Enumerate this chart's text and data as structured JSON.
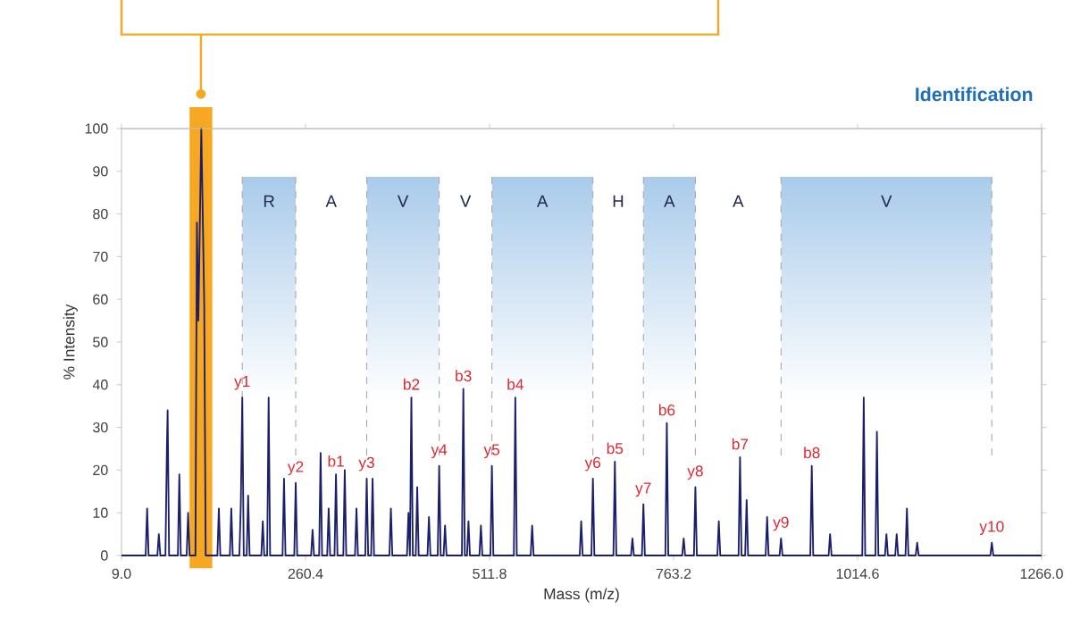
{
  "chart_data": {
    "type": "line",
    "title": "Identification",
    "xlabel": "Mass (m/z)",
    "ylabel": "% Intensity",
    "color": "#1b1f6b",
    "x": [
      9,
      42,
      44,
      46,
      58,
      60,
      62,
      69,
      71,
      72,
      74,
      86,
      88,
      90,
      98,
      100,
      102,
      110,
      112,
      114,
      118,
      122,
      124,
      140,
      142,
      144,
      157,
      159,
      161,
      170,
      172,
      174,
      176,
      180,
      182,
      184,
      200,
      202,
      204,
      208,
      210,
      212,
      229,
      231,
      233,
      245,
      247,
      249,
      268,
      270,
      272,
      279,
      281,
      283,
      290,
      292,
      294,
      300,
      302,
      304,
      312,
      314,
      316,
      328,
      330,
      332,
      342,
      344,
      346,
      350,
      352,
      354,
      375,
      377,
      379,
      399,
      401,
      403,
      405,
      407,
      411,
      413,
      415,
      427,
      429,
      431,
      441,
      443,
      445,
      449,
      451,
      453,
      474,
      476,
      478,
      481,
      483,
      485,
      498,
      500,
      502,
      513,
      515,
      517,
      545,
      547,
      549,
      568,
      570,
      572,
      635,
      637,
      639,
      651,
      653,
      655,
      681,
      683,
      685,
      705,
      707,
      709,
      720,
      722,
      724,
      752,
      754,
      756,
      775,
      777,
      779,
      791,
      793,
      795,
      823,
      825,
      827,
      852,
      854,
      856,
      861,
      863,
      865,
      889,
      891,
      893,
      908,
      910,
      912,
      950,
      952,
      954,
      975,
      977,
      979,
      1021,
      1023,
      1025,
      1039,
      1041,
      1043,
      1052,
      1054,
      1056,
      1066,
      1068,
      1070,
      1080,
      1082,
      1084,
      1094,
      1096,
      1098,
      1196,
      1198,
      1200,
      1266
    ],
    "values": [
      0,
      0,
      11,
      0,
      0,
      5,
      0,
      0,
      25,
      34,
      0,
      0,
      19,
      0,
      0,
      10,
      0,
      0,
      78,
      55,
      100,
      59,
      0,
      0,
      11,
      0,
      0,
      11,
      0,
      0,
      12,
      37,
      0,
      0,
      14,
      0,
      0,
      8,
      0,
      0,
      37,
      0,
      0,
      18,
      0,
      0,
      17,
      0,
      0,
      6,
      0,
      0,
      24,
      0,
      0,
      11,
      0,
      0,
      19,
      0,
      0,
      20,
      0,
      0,
      11,
      0,
      0,
      18,
      0,
      0,
      18,
      0,
      0,
      11,
      0,
      0,
      10,
      0,
      37,
      0,
      0,
      16,
      0,
      0,
      9,
      0,
      0,
      21,
      0,
      0,
      7,
      0,
      0,
      39,
      0,
      0,
      8,
      0,
      0,
      7,
      0,
      0,
      21,
      0,
      0,
      37,
      0,
      0,
      7,
      0,
      0,
      8,
      0,
      0,
      18,
      0,
      0,
      22,
      0,
      0,
      4,
      0,
      0,
      12,
      0,
      0,
      31,
      0,
      0,
      4,
      0,
      0,
      16,
      0,
      0,
      8,
      0,
      0,
      23,
      0,
      0,
      13,
      0,
      0,
      9,
      0,
      0,
      4,
      0,
      0,
      21,
      0,
      0,
      5,
      0,
      0,
      37,
      0,
      0,
      29,
      0,
      0,
      5,
      0,
      0,
      5,
      0,
      0,
      11,
      0,
      0,
      3,
      0,
      0,
      3,
      0,
      0
    ],
    "xlim": [
      9.0,
      1266.0
    ],
    "ylim": [
      0,
      100
    ],
    "xticks": [
      {
        "value": 9.0,
        "label": "9.0"
      },
      {
        "value": 260.4,
        "label": "260.4"
      },
      {
        "value": 511.8,
        "label": "511.8"
      },
      {
        "value": 763.2,
        "label": "763.2"
      },
      {
        "value": 1014.6,
        "label": "1014.6"
      },
      {
        "value": 1266.0,
        "label": "1266.0"
      }
    ],
    "yticks": [
      0,
      10,
      20,
      30,
      40,
      50,
      60,
      70,
      80,
      90,
      100
    ],
    "bands": [
      {
        "axis": "x",
        "from": 102,
        "to": 133,
        "color": "#f7a823"
      },
      {
        "axis": "x",
        "from": 174,
        "to": 247,
        "label": "R",
        "color": "#a9cbea"
      },
      {
        "axis": "x",
        "from": 344,
        "to": 443,
        "label": "V",
        "color": "#a9cbea"
      },
      {
        "axis": "x",
        "from": 515,
        "to": 653,
        "label": "A",
        "color": "#a9cbea"
      },
      {
        "axis": "x",
        "from": 722,
        "to": 793,
        "label": "A",
        "color": "#a9cbea"
      },
      {
        "axis": "x",
        "from": 910,
        "to": 1198,
        "label": "V",
        "color": "#a9cbea"
      }
    ],
    "ref_lines": [
      {
        "axis": "x",
        "value": 174,
        "color": "#a6a6a6",
        "line_style": "dashed"
      },
      {
        "axis": "x",
        "value": 247,
        "color": "#a6a6a6",
        "line_style": "dashed"
      },
      {
        "axis": "x",
        "value": 344,
        "color": "#a6a6a6",
        "line_style": "dashed"
      },
      {
        "axis": "x",
        "value": 443,
        "color": "#a6a6a6",
        "line_style": "dashed"
      },
      {
        "axis": "x",
        "value": 515,
        "color": "#a6a6a6",
        "line_style": "dashed"
      },
      {
        "axis": "x",
        "value": 653,
        "color": "#a6a6a6",
        "line_style": "dashed"
      },
      {
        "axis": "x",
        "value": 722,
        "color": "#a6a6a6",
        "line_style": "dashed"
      },
      {
        "axis": "x",
        "value": 793,
        "color": "#a6a6a6",
        "line_style": "dashed"
      },
      {
        "axis": "x",
        "value": 910,
        "color": "#a6a6a6",
        "line_style": "dashed"
      },
      {
        "axis": "x",
        "value": 1198,
        "color": "#a6a6a6",
        "line_style": "dashed"
      }
    ],
    "annotations": [
      "A",
      "V",
      "H",
      "A",
      {
        "text": "y1",
        "x": 174,
        "y": 37
      },
      {
        "text": "y2",
        "x": 247,
        "y": 17
      },
      {
        "text": "b1",
        "x": 302,
        "y": 19
      },
      {
        "text": "y3",
        "x": 344,
        "y": 18
      },
      {
        "text": "b2",
        "x": 405,
        "y": 37
      },
      {
        "text": "y4",
        "x": 443,
        "y": 21
      },
      {
        "text": "b3",
        "x": 476,
        "y": 39
      },
      {
        "text": "y5",
        "x": 515,
        "y": 21
      },
      {
        "text": "b4",
        "x": 547,
        "y": 37
      },
      {
        "text": "y6",
        "x": 653,
        "y": 18
      },
      {
        "text": "b5",
        "x": 683,
        "y": 22
      },
      {
        "text": "y7",
        "x": 722,
        "y": 12
      },
      {
        "text": "b6",
        "x": 754,
        "y": 31
      },
      {
        "text": "y8",
        "x": 793,
        "y": 16
      },
      {
        "text": "b7",
        "x": 854,
        "y": 23
      },
      {
        "text": "y9",
        "x": 910,
        "y": 4
      },
      {
        "text": "b8",
        "x": 952,
        "y": 21
      },
      {
        "text": "y10",
        "x": 1198,
        "y": 3
      }
    ]
  }
}
